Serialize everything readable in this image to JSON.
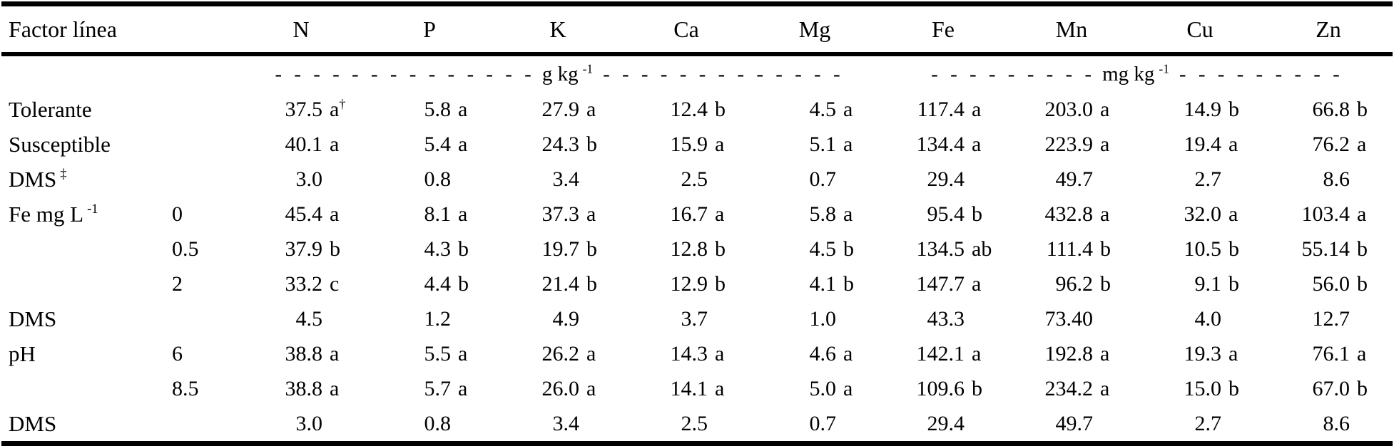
{
  "table": {
    "header": {
      "factor_label": "Factor línea",
      "columns": [
        "N",
        "P",
        "K",
        "Ca",
        "Mg",
        "Fe",
        "Mn",
        "Cu",
        "Zn"
      ]
    },
    "units": {
      "g": {
        "dashes_left": "- - - - - - - - - - - - - -",
        "label": "g kg",
        "sup": "-1",
        "dashes_right": "- - - - - - - - - - - - -"
      },
      "mg": {
        "dashes_left": "- - - - - - - - -",
        "label": "mg kg",
        "sup": "-1",
        "dashes_right": "- - - - - - - - -"
      }
    },
    "rows": [
      {
        "factor": "Tolerante",
        "factor_sup": "",
        "level": "",
        "cells": [
          {
            "v": "37.5",
            "g": "a",
            "s": "†"
          },
          {
            "v": "5.8",
            "g": "a",
            "s": ""
          },
          {
            "v": "27.9",
            "g": "a",
            "s": ""
          },
          {
            "v": "12.4",
            "g": "b",
            "s": ""
          },
          {
            "v": "4.5",
            "g": "a",
            "s": ""
          },
          {
            "v": "117.4",
            "g": "a",
            "s": ""
          },
          {
            "v": "203.0",
            "g": "a",
            "s": ""
          },
          {
            "v": "14.9",
            "g": "b",
            "s": ""
          },
          {
            "v": "66.8",
            "g": "b",
            "s": ""
          }
        ]
      },
      {
        "factor": "Susceptible",
        "factor_sup": "",
        "level": "",
        "cells": [
          {
            "v": "40.1",
            "g": "a",
            "s": ""
          },
          {
            "v": "5.4",
            "g": "a",
            "s": ""
          },
          {
            "v": "24.3",
            "g": "b",
            "s": ""
          },
          {
            "v": "15.9",
            "g": "a",
            "s": ""
          },
          {
            "v": "5.1",
            "g": "a",
            "s": ""
          },
          {
            "v": "134.4",
            "g": "a",
            "s": ""
          },
          {
            "v": "223.9",
            "g": "a",
            "s": ""
          },
          {
            "v": "19.4",
            "g": "a",
            "s": ""
          },
          {
            "v": "76.2",
            "g": "a",
            "s": ""
          }
        ]
      },
      {
        "factor": "DMS",
        "factor_sup": "‡",
        "level": "",
        "cells": [
          {
            "v": "3.0",
            "g": "",
            "s": ""
          },
          {
            "v": "0.8",
            "g": "",
            "s": ""
          },
          {
            "v": "3.4",
            "g": "",
            "s": ""
          },
          {
            "v": "2.5",
            "g": "",
            "s": ""
          },
          {
            "v": "0.7",
            "g": "",
            "s": ""
          },
          {
            "v": "29.4",
            "g": "",
            "s": ""
          },
          {
            "v": "49.7",
            "g": "",
            "s": ""
          },
          {
            "v": "2.7",
            "g": "",
            "s": ""
          },
          {
            "v": "8.6",
            "g": "",
            "s": ""
          }
        ]
      },
      {
        "factor": "Fe mg L",
        "factor_sup": "-1",
        "level": "0",
        "cells": [
          {
            "v": "45.4",
            "g": "a",
            "s": ""
          },
          {
            "v": "8.1",
            "g": "a",
            "s": ""
          },
          {
            "v": "37.3",
            "g": "a",
            "s": ""
          },
          {
            "v": "16.7",
            "g": "a",
            "s": ""
          },
          {
            "v": "5.8",
            "g": "a",
            "s": ""
          },
          {
            "v": "95.4",
            "g": "b",
            "s": ""
          },
          {
            "v": "432.8",
            "g": "a",
            "s": ""
          },
          {
            "v": "32.0",
            "g": "a",
            "s": ""
          },
          {
            "v": "103.4",
            "g": "a",
            "s": ""
          }
        ]
      },
      {
        "factor": "",
        "factor_sup": "",
        "level": "0.5",
        "cells": [
          {
            "v": "37.9",
            "g": "b",
            "s": ""
          },
          {
            "v": "4.3",
            "g": "b",
            "s": ""
          },
          {
            "v": "19.7",
            "g": "b",
            "s": ""
          },
          {
            "v": "12.8",
            "g": "b",
            "s": ""
          },
          {
            "v": "4.5",
            "g": "b",
            "s": ""
          },
          {
            "v": "134.5",
            "g": "ab",
            "s": ""
          },
          {
            "v": "111.4",
            "g": "b",
            "s": ""
          },
          {
            "v": "10.5",
            "g": "b",
            "s": ""
          },
          {
            "v": "55.14",
            "g": "b",
            "s": ""
          }
        ]
      },
      {
        "factor": "",
        "factor_sup": "",
        "level": "2",
        "cells": [
          {
            "v": "33.2",
            "g": "c",
            "s": ""
          },
          {
            "v": "4.4",
            "g": "b",
            "s": ""
          },
          {
            "v": "21.4",
            "g": "b",
            "s": ""
          },
          {
            "v": "12.9",
            "g": "b",
            "s": ""
          },
          {
            "v": "4.1",
            "g": "b",
            "s": ""
          },
          {
            "v": "147.7",
            "g": "a",
            "s": ""
          },
          {
            "v": "96.2",
            "g": "b",
            "s": ""
          },
          {
            "v": "9.1",
            "g": "b",
            "s": ""
          },
          {
            "v": "56.0",
            "g": "b",
            "s": ""
          }
        ]
      },
      {
        "factor": "DMS",
        "factor_sup": "",
        "level": "",
        "cells": [
          {
            "v": "4.5",
            "g": "",
            "s": ""
          },
          {
            "v": "1.2",
            "g": "",
            "s": ""
          },
          {
            "v": "4.9",
            "g": "",
            "s": ""
          },
          {
            "v": "3.7",
            "g": "",
            "s": ""
          },
          {
            "v": "1.0",
            "g": "",
            "s": ""
          },
          {
            "v": "43.3",
            "g": "",
            "s": ""
          },
          {
            "v": "73.40",
            "g": "",
            "s": ""
          },
          {
            "v": "4.0",
            "g": "",
            "s": ""
          },
          {
            "v": "12.7",
            "g": "",
            "s": ""
          }
        ]
      },
      {
        "factor": "pH",
        "factor_sup": "",
        "level": "6",
        "cells": [
          {
            "v": "38.8",
            "g": "a",
            "s": ""
          },
          {
            "v": "5.5",
            "g": "a",
            "s": ""
          },
          {
            "v": "26.2",
            "g": "a",
            "s": ""
          },
          {
            "v": "14.3",
            "g": "a",
            "s": ""
          },
          {
            "v": "4.6",
            "g": "a",
            "s": ""
          },
          {
            "v": "142.1",
            "g": "a",
            "s": ""
          },
          {
            "v": "192.8",
            "g": "a",
            "s": ""
          },
          {
            "v": "19.3",
            "g": "a",
            "s": ""
          },
          {
            "v": "76.1",
            "g": "a",
            "s": ""
          }
        ]
      },
      {
        "factor": "",
        "factor_sup": "",
        "level": "8.5",
        "cells": [
          {
            "v": "38.8",
            "g": "a",
            "s": ""
          },
          {
            "v": "5.7",
            "g": "a",
            "s": ""
          },
          {
            "v": "26.0",
            "g": "a",
            "s": ""
          },
          {
            "v": "14.1",
            "g": "a",
            "s": ""
          },
          {
            "v": "5.0",
            "g": "a",
            "s": ""
          },
          {
            "v": "109.6",
            "g": "b",
            "s": ""
          },
          {
            "v": "234.2",
            "g": "a",
            "s": ""
          },
          {
            "v": "15.0",
            "g": "b",
            "s": ""
          },
          {
            "v": "67.0",
            "g": "b",
            "s": ""
          }
        ]
      },
      {
        "factor": "DMS",
        "factor_sup": "",
        "level": "",
        "cells": [
          {
            "v": "3.0",
            "g": "",
            "s": ""
          },
          {
            "v": "0.8",
            "g": "",
            "s": ""
          },
          {
            "v": "3.4",
            "g": "",
            "s": ""
          },
          {
            "v": "2.5",
            "g": "",
            "s": ""
          },
          {
            "v": "0.7",
            "g": "",
            "s": ""
          },
          {
            "v": "29.4",
            "g": "",
            "s": ""
          },
          {
            "v": "49.7",
            "g": "",
            "s": ""
          },
          {
            "v": "2.7",
            "g": "",
            "s": ""
          },
          {
            "v": "8.6",
            "g": "",
            "s": ""
          }
        ]
      }
    ]
  }
}
